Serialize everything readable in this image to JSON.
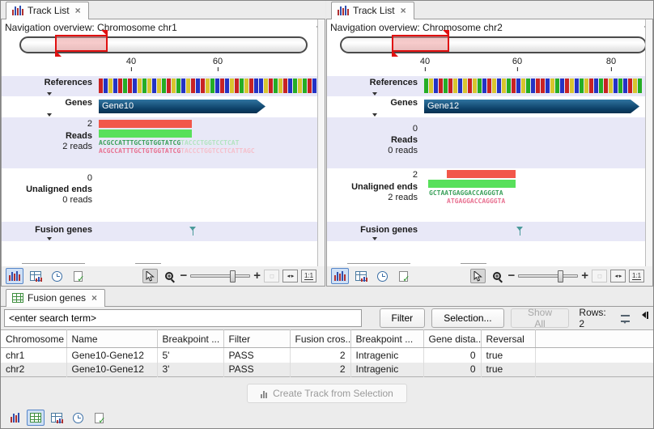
{
  "icons": {
    "close": "×",
    "minus": "−",
    "plus": "+",
    "one_to_one": "1:1",
    "h_fit": "◂--▸"
  },
  "colors": {
    "barcode": {
      "R": "#c92323",
      "G": "#25ad25",
      "B": "#2433c4",
      "Y": "#d8c52e"
    },
    "read_red": "#f2574a",
    "read_green": "#58e05b",
    "gene_fill": "#0c3f66",
    "selection_red": "#e01010",
    "flag_teal": "#4a9a9a",
    "accent_blue": "#5585c8"
  },
  "panels": [
    {
      "tab_label": "Track List",
      "nav_label": "Navigation overview: Chromosome chr1",
      "ruler_ticks": [
        "40",
        "60"
      ],
      "tracks": {
        "references_label": "References",
        "barcode": "RBYBRGRBYGYBYGRYGBYRBRYGBRBYRGYRBBYRGYRBGYGRB",
        "genes_label": "Genes",
        "gene_name": "Gene10",
        "reads_count": "2",
        "reads_label": "Reads",
        "reads_sub": "2 reads",
        "seq1_bold": "ACGCCATTTGCTGTGGTATCG",
        "seq1_faded": "TACCCTGGTCCTCAT",
        "seq2_bold": "ACGCCATTTGCTGTGGTATCG",
        "seq2_faded": "TACCCTGGTCCTCATTAGC",
        "unaligned_count": "0",
        "unaligned_label": "Unaligned ends",
        "unaligned_sub": "0 reads",
        "fusion_label": "Fusion genes"
      }
    },
    {
      "tab_label": "Track List",
      "nav_label": "Navigation overview: Chromosome chr2",
      "ruler_ticks": [
        "40",
        "60",
        "80"
      ],
      "tracks": {
        "references_label": "References",
        "barcode": "GYBRGRYBYRYGBRYBYGRBYGBRRBYGBRYBGYRBGRYBGBRYG",
        "genes_label": "Genes",
        "gene_name": "Gene12",
        "reads_count": "0",
        "reads_label": "Reads",
        "reads_sub": "0 reads",
        "unaligned_count": "2",
        "unaligned_label": "Unaligned ends",
        "unaligned_sub": "2 reads",
        "useq1": "GCTAATGAGGACCAGGGTA",
        "useq2": "ATGAGGACCAGGGTA",
        "fusion_label": "Fusion genes"
      }
    }
  ],
  "bottom": {
    "tab_label": "Fusion genes",
    "search_value": "<enter search term>",
    "filter_button": "Filter",
    "selection_button": "Selection...",
    "show_all_button": "Show All",
    "rows_label": "Rows: 2",
    "table": {
      "columns": [
        "Chromosome",
        "Name",
        "Breakpoint ...",
        "Filter",
        "Fusion cros...",
        "Breakpoint ...",
        "Gene dista...",
        "Reversal"
      ],
      "rows": [
        [
          "chr1",
          "Gene10-Gene12",
          "5'",
          "PASS",
          "2",
          "Intragenic",
          "0",
          "true"
        ],
        [
          "chr2",
          "Gene10-Gene12",
          "3'",
          "PASS",
          "2",
          "Intragenic",
          "0",
          "true"
        ]
      ]
    },
    "create_track_button": "Create Track from Selection"
  }
}
